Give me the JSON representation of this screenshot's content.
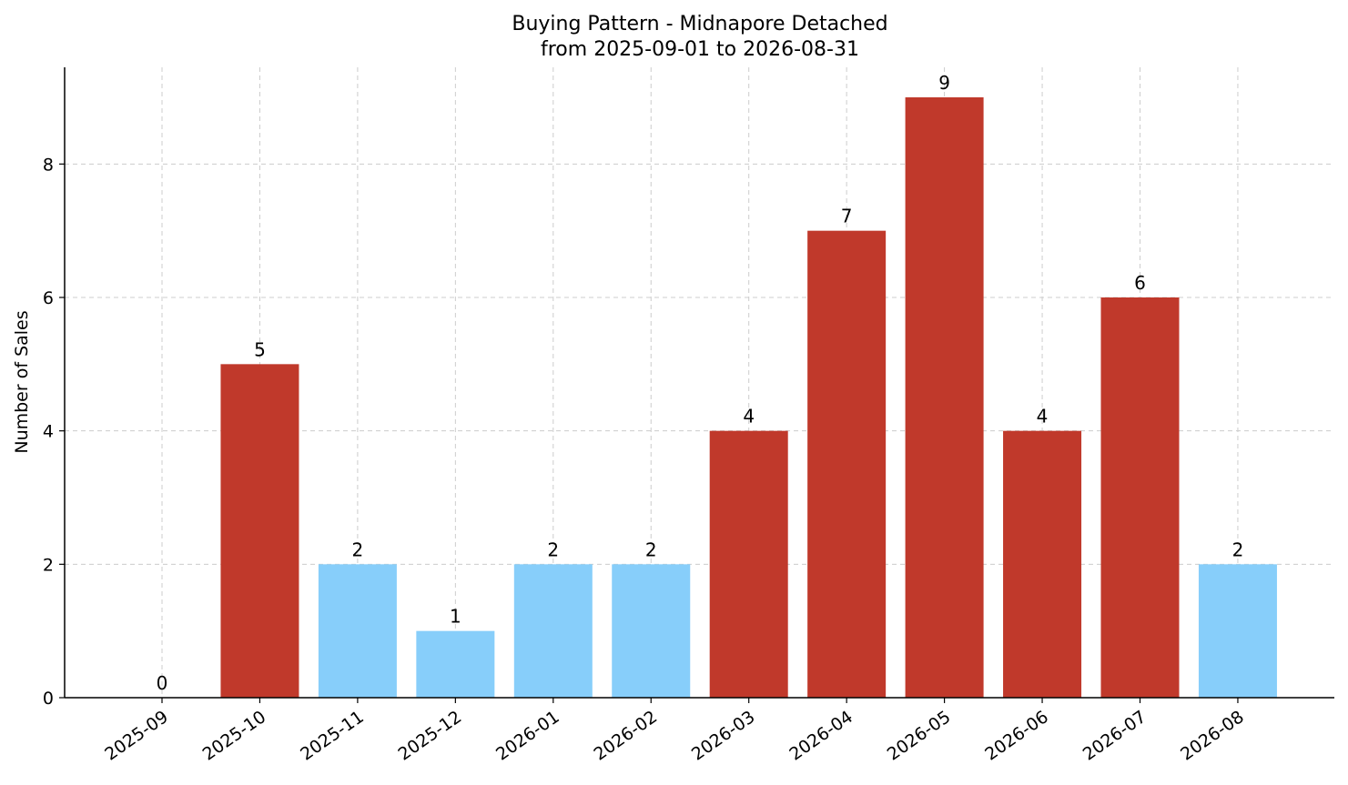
{
  "chart_data": {
    "type": "bar",
    "title": "Buying Pattern - Midnapore Detached",
    "subtitle": "from 2025-09-01 to 2026-08-31",
    "xlabel": "",
    "ylabel": "Number of Sales",
    "categories": [
      "2025-09",
      "2025-10",
      "2025-11",
      "2025-12",
      "2026-01",
      "2026-02",
      "2026-03",
      "2026-04",
      "2026-05",
      "2026-06",
      "2026-07",
      "2026-08"
    ],
    "values": [
      0,
      5,
      2,
      1,
      2,
      2,
      4,
      7,
      9,
      4,
      6,
      2
    ],
    "bar_colors": [
      "#87CEFA",
      "#C0392B",
      "#87CEFA",
      "#87CEFA",
      "#87CEFA",
      "#87CEFA",
      "#C0392B",
      "#C0392B",
      "#C0392B",
      "#C0392B",
      "#C0392B",
      "#87CEFA"
    ],
    "y_ticks": [
      0,
      2,
      4,
      6,
      8
    ],
    "ylim": [
      0,
      9.45
    ],
    "grid": true,
    "legend": "none"
  }
}
